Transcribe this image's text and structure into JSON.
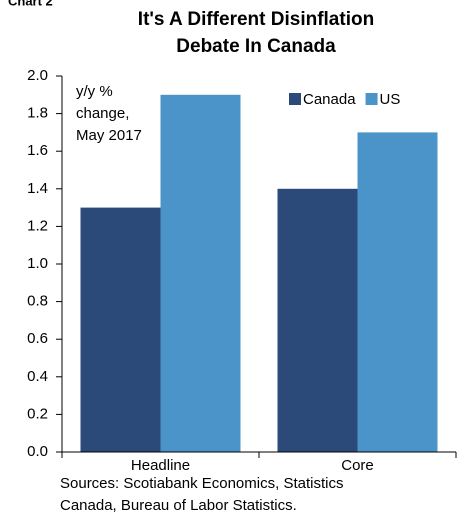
{
  "chart_data": {
    "type": "bar",
    "chart_label": "Chart 2",
    "title": [
      "It's A Different Disinflation",
      "Debate In Canada"
    ],
    "annotation": [
      "y/y %",
      "change,",
      "May 2017"
    ],
    "source": [
      "Sources: Scotiabank Economics, Statistics",
      "Canada, Bureau of Labor Statistics."
    ],
    "categories": [
      "Headline",
      "Core"
    ],
    "series": [
      {
        "name": "Canada",
        "color": "#2b4a7a",
        "values": [
          1.3,
          1.4
        ]
      },
      {
        "name": "US",
        "color": "#4b94c9",
        "values": [
          1.9,
          1.7
        ]
      }
    ],
    "ylim": [
      0,
      2.0
    ],
    "yticks": [
      {
        "value": 0,
        "label": "0.0"
      },
      {
        "value": 0.2,
        "label": "0.2"
      },
      {
        "value": 0.4,
        "label": "0.4"
      },
      {
        "value": 0.6,
        "label": "0.6"
      },
      {
        "value": 0.8,
        "label": "0.8"
      },
      {
        "value": 1.0,
        "label": "1.0"
      },
      {
        "value": 1.2,
        "label": "1.2"
      },
      {
        "value": 1.4,
        "label": "1.4"
      },
      {
        "value": 1.6,
        "label": "1.6"
      },
      {
        "value": 1.8,
        "label": "1.8"
      },
      {
        "value": 2.0,
        "label": "2.0"
      }
    ],
    "grid": false,
    "legend": "top-right"
  }
}
